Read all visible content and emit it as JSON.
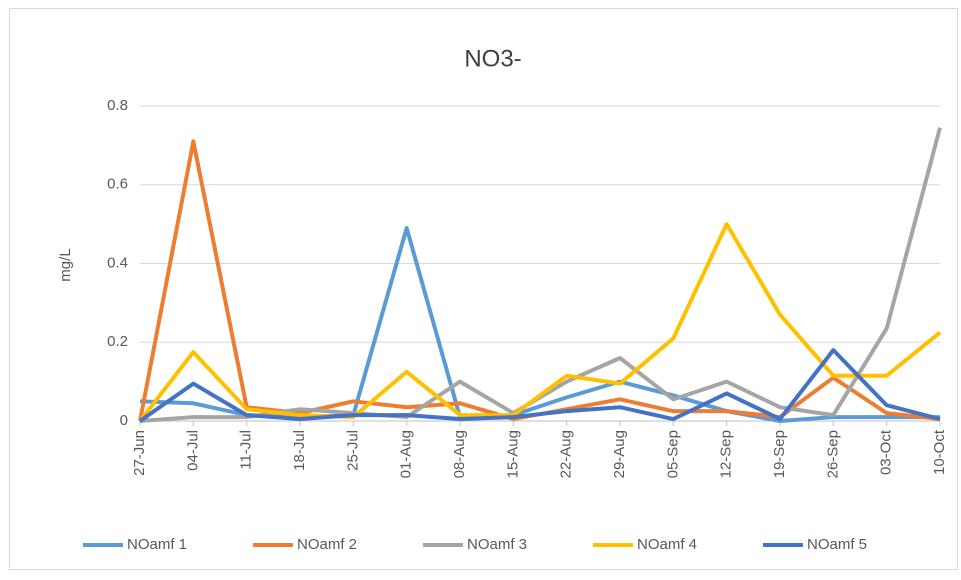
{
  "chart_data": {
    "type": "line",
    "title": "NO3-",
    "y_label": "mg/L",
    "categories": [
      "27-Jun",
      "04-Jul",
      "11-Jul",
      "18-Jul",
      "25-Jul",
      "01-Aug",
      "08-Aug",
      "15-Aug",
      "22-Aug",
      "29-Aug",
      "05-Sep",
      "12-Sep",
      "19-Sep",
      "26-Sep",
      "03-Oct",
      "10-Oct"
    ],
    "series": [
      {
        "name": "NOamf 1",
        "color": "#5b9bd5",
        "values": [
          0.05,
          0.045,
          0.015,
          0.01,
          0.015,
          0.49,
          0.01,
          0.015,
          0.06,
          0.1,
          0.065,
          0.025,
          0.0,
          0.01,
          0.01,
          0.01
        ]
      },
      {
        "name": "NOamf 2",
        "color": "#ed7d31",
        "values": [
          0,
          0.71,
          0.035,
          0.02,
          0.05,
          0.035,
          0.045,
          0.005,
          0.03,
          0.055,
          0.025,
          0.025,
          0.01,
          0.11,
          0.02,
          0.005
        ]
      },
      {
        "name": "NOamf 3",
        "color": "#a5a5a5",
        "values": [
          0,
          0.01,
          0.01,
          0.03,
          0.02,
          0.01,
          0.1,
          0.02,
          0.1,
          0.16,
          0.055,
          0.1,
          0.035,
          0.015,
          0.235,
          0.745
        ]
      },
      {
        "name": "NOamf 4",
        "color": "#ffc000",
        "values": [
          0,
          0.175,
          0.03,
          0.015,
          0.01,
          0.125,
          0.015,
          0.015,
          0.115,
          0.095,
          0.21,
          0.5,
          0.27,
          0.115,
          0.115,
          0.225
        ]
      },
      {
        "name": "NOamf 5",
        "color": "#4472c4",
        "values": [
          0,
          0.095,
          0.015,
          0.005,
          0.015,
          0.015,
          0.005,
          0.01,
          0.025,
          0.035,
          0.005,
          0.07,
          0.005,
          0.18,
          0.04,
          0.005
        ]
      }
    ],
    "ylim": [
      0,
      0.8
    ],
    "yticks": [
      0,
      0.2,
      0.4,
      0.6,
      0.8
    ],
    "grid": true,
    "legend": "bottom"
  }
}
